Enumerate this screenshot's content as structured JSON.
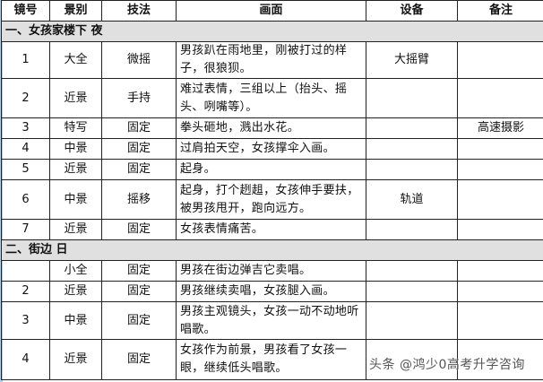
{
  "headers": [
    "镜号",
    "景别",
    "技法",
    "画面",
    "设备",
    "备注"
  ],
  "sections": [
    {
      "title": "一、女孩家楼下  夜",
      "rows": [
        {
          "no": "1",
          "shot": "大全",
          "tech": "微摇",
          "desc": "男孩趴在雨地里，刚被打过的样子，很狼狈。",
          "equip": "大摇臂",
          "note": ""
        },
        {
          "no": "2",
          "shot": "近景",
          "tech": "手持",
          "desc": "难过表情，三组以上（抬头、摇头、咧嘴等）。",
          "equip": "",
          "note": ""
        },
        {
          "no": "3",
          "shot": "特写",
          "tech": "固定",
          "desc": "拳头砸地，溅出水花。",
          "equip": "",
          "note": "高速摄影"
        },
        {
          "no": "4",
          "shot": "中景",
          "tech": "固定",
          "desc": "过肩拍天空，女孩撑伞入画。",
          "equip": "",
          "note": ""
        },
        {
          "no": "5",
          "shot": "近景",
          "tech": "固定",
          "desc": "起身。",
          "equip": "",
          "note": ""
        },
        {
          "no": "6",
          "shot": "中景",
          "tech": "摇移",
          "desc": "起身，打个趔趄，女孩伸手要扶，被男孩甩开，跑向远方。",
          "equip": "轨道",
          "note": ""
        },
        {
          "no": "7",
          "shot": "近景",
          "tech": "固定",
          "desc": "女孩表情痛苦。",
          "equip": "",
          "note": ""
        }
      ]
    },
    {
      "title": "二、街边  日",
      "rows": [
        {
          "no": "",
          "shot": "小全",
          "tech": "固定",
          "desc": "男孩在街边弹吉它卖唱。",
          "equip": "",
          "note": ""
        },
        {
          "no": "2",
          "shot": "近景",
          "tech": "固定",
          "desc": "男孩继续卖唱，女孩腿入画。",
          "equip": "",
          "note": ""
        },
        {
          "no": "3",
          "shot": "中景",
          "tech": "固定",
          "desc": "男孩主观镜头，女孩一动不动地听唱歌。",
          "equip": "",
          "note": ""
        },
        {
          "no": "4",
          "shot": "近景",
          "tech": "固定",
          "desc": "女孩作为前景，男孩看了女孩一眼，继续低头唱歌。",
          "equip": "",
          "note": ""
        }
      ]
    }
  ],
  "watermark": "头条 @鸿少0高考升学咨询"
}
